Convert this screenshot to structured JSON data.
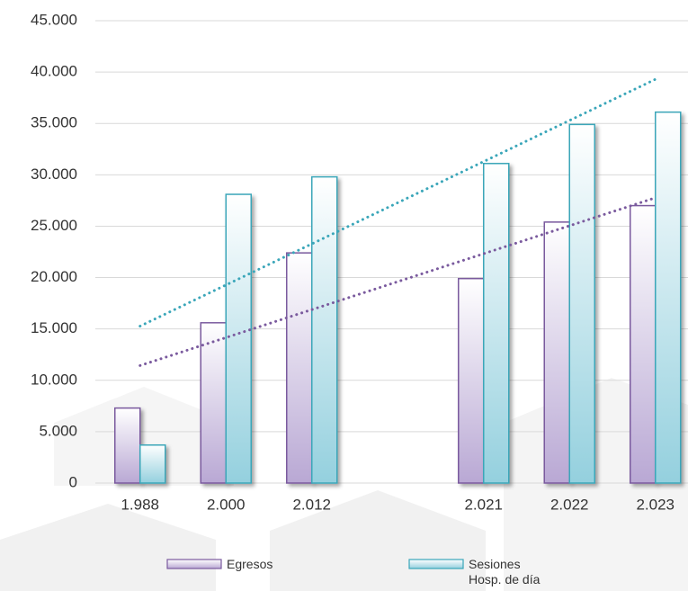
{
  "chart_data": {
    "type": "bar",
    "categories": [
      "1.988",
      "2.000",
      "2.012",
      null,
      "2.021",
      "2.022",
      "2.023"
    ],
    "series": [
      {
        "name": "Egresos",
        "color": "#7a5a9e",
        "values": [
          7300,
          15600,
          22400,
          null,
          19900,
          25400,
          27000
        ]
      },
      {
        "name": "Sesiones Hosp. de día",
        "color": "#3aa6b9",
        "values": [
          3700,
          28100,
          29800,
          null,
          31100,
          34900,
          36100
        ]
      }
    ],
    "ylim": [
      0,
      45000
    ],
    "yticks": [
      0,
      {
        "value": 5000,
        "label": "5.000"
      },
      {
        "value": 10000,
        "label": "10.000"
      },
      {
        "value": 15000,
        "label": "15.000"
      },
      {
        "value": 20000,
        "label": "20.000"
      },
      {
        "value": 25000,
        "label": "25.000"
      },
      {
        "value": 30000,
        "label": "30.000"
      },
      {
        "value": 35000,
        "label": "35.000"
      },
      {
        "value": 40000,
        "label": "40.000"
      },
      {
        "value": 45000,
        "label": "45.000"
      }
    ],
    "grid": true,
    "trendline": true,
    "legend": "bottom"
  }
}
